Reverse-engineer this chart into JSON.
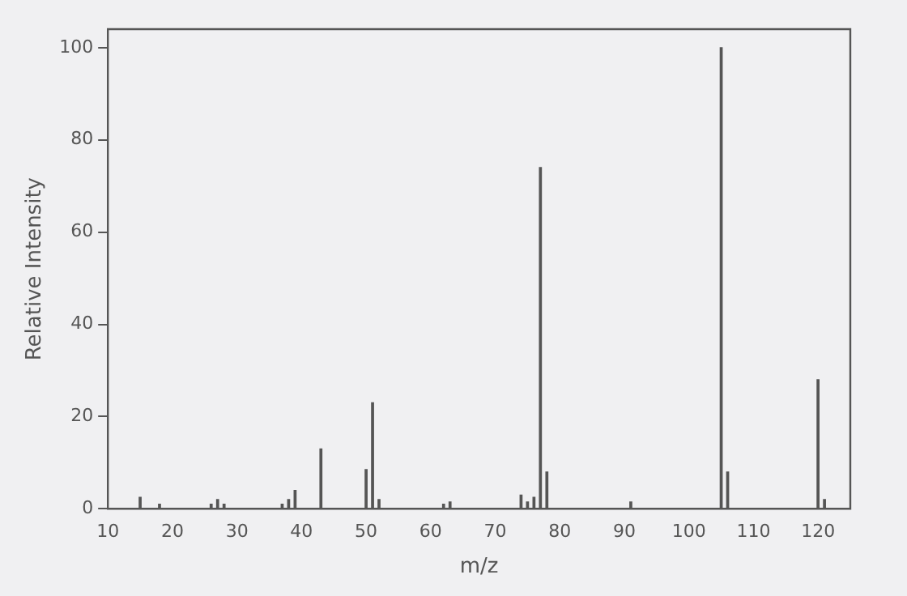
{
  "chart_data": {
    "type": "bar",
    "xlabel": "m/z",
    "ylabel": "Relative Intensity",
    "x": [
      15,
      18,
      26,
      27,
      28,
      37,
      38,
      39,
      43,
      50,
      51,
      52,
      62,
      63,
      74,
      75,
      76,
      77,
      78,
      91,
      105,
      106,
      120,
      121
    ],
    "values": [
      2.5,
      1,
      1,
      2,
      1,
      1,
      2,
      4,
      13,
      8.5,
      23,
      2,
      1,
      1.5,
      3,
      1.5,
      2.5,
      74,
      8,
      1.5,
      100,
      8,
      28,
      2
    ],
    "color": "#555555",
    "xlim": [
      10,
      125
    ],
    "xticks": [
      10,
      20,
      30,
      40,
      50,
      60,
      70,
      80,
      90,
      100,
      110,
      120
    ],
    "ylim": [
      0,
      104
    ],
    "yticks": [
      0,
      20,
      40,
      60,
      80,
      100
    ],
    "grid": false,
    "legend": false
  }
}
